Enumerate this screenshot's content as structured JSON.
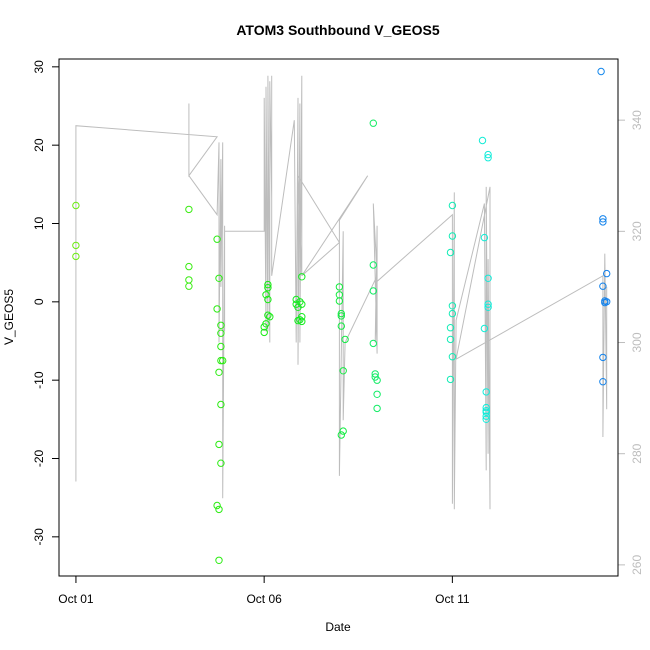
{
  "chart_data": {
    "type": "scatter",
    "title": "ATOM3 Southbound V_GEOS5",
    "xlabel": "Date",
    "ylabel": "V_GEOS5",
    "x_tick_labels": [
      "Oct 01",
      "Oct 06",
      "Oct 11"
    ],
    "x_ticks_day": [
      1,
      6,
      11
    ],
    "xlim_day": [
      0.55,
      15.4
    ],
    "ylim": [
      -35,
      31
    ],
    "y_ticks": [
      -30,
      -20,
      -10,
      0,
      10,
      20,
      30
    ],
    "y2lim": [
      258,
      351
    ],
    "y2_ticks": [
      260,
      280,
      300,
      320,
      340
    ],
    "grid": false,
    "legend": "none",
    "points_color_note": "hue varies from yellow-green to blue with time",
    "series": [
      {
        "type": "scatter",
        "points": [
          [
            1.0,
            12.3
          ],
          [
            1.0,
            7.2
          ],
          [
            1.0,
            5.8
          ],
          [
            4.0,
            11.8
          ],
          [
            4.0,
            4.5
          ],
          [
            4.0,
            2.8
          ],
          [
            4.0,
            2.0
          ],
          [
            4.75,
            8.0
          ],
          [
            4.75,
            -0.9
          ],
          [
            4.8,
            3.0
          ],
          [
            4.8,
            -9.0
          ],
          [
            4.8,
            -18.2
          ],
          [
            4.75,
            -26.0
          ],
          [
            4.8,
            -26.5
          ],
          [
            4.8,
            -33.0
          ],
          [
            4.85,
            -3.0
          ],
          [
            4.85,
            -4.0
          ],
          [
            4.85,
            -5.7
          ],
          [
            4.85,
            -7.5
          ],
          [
            4.9,
            -7.5
          ],
          [
            4.85,
            -13.1
          ],
          [
            4.85,
            -20.6
          ],
          [
            6.0,
            -3.2
          ],
          [
            6.0,
            -3.9
          ],
          [
            6.05,
            -2.8
          ],
          [
            6.05,
            0.9
          ],
          [
            6.1,
            1.8
          ],
          [
            6.1,
            2.2
          ],
          [
            6.1,
            -1.7
          ],
          [
            6.15,
            -1.9
          ],
          [
            6.1,
            0.3
          ],
          [
            6.85,
            -0.3
          ],
          [
            6.85,
            0.3
          ],
          [
            6.9,
            -0.7
          ],
          [
            6.9,
            -2.4
          ],
          [
            6.95,
            -2.3
          ],
          [
            6.95,
            0.0
          ],
          [
            7.0,
            -0.3
          ],
          [
            7.0,
            -2.5
          ],
          [
            7.0,
            -1.9
          ],
          [
            7.0,
            3.2
          ],
          [
            8.0,
            1.9
          ],
          [
            8.0,
            0.9
          ],
          [
            8.0,
            0.1
          ],
          [
            8.05,
            -1.5
          ],
          [
            8.05,
            -1.8
          ],
          [
            8.05,
            -3.1
          ],
          [
            8.1,
            -8.8
          ],
          [
            8.1,
            -16.5
          ],
          [
            8.05,
            -17.0
          ],
          [
            8.15,
            -4.8
          ],
          [
            8.9,
            22.8
          ],
          [
            8.9,
            4.7
          ],
          [
            8.9,
            1.4
          ],
          [
            8.9,
            -5.3
          ],
          [
            8.95,
            -9.2
          ],
          [
            8.95,
            -9.6
          ],
          [
            9.0,
            -10.0
          ],
          [
            9.0,
            -11.8
          ],
          [
            9.0,
            -13.6
          ],
          [
            11.0,
            12.3
          ],
          [
            11.0,
            8.4
          ],
          [
            10.95,
            6.3
          ],
          [
            11.0,
            -0.5
          ],
          [
            11.0,
            -1.5
          ],
          [
            10.95,
            -3.3
          ],
          [
            10.95,
            -4.8
          ],
          [
            11.0,
            -7.0
          ],
          [
            10.95,
            -9.9
          ],
          [
            11.8,
            20.6
          ],
          [
            11.95,
            18.8
          ],
          [
            11.95,
            18.4
          ],
          [
            11.85,
            8.2
          ],
          [
            11.95,
            3.0
          ],
          [
            11.95,
            -0.3
          ],
          [
            11.95,
            -0.7
          ],
          [
            11.85,
            -3.4
          ],
          [
            11.9,
            -11.5
          ],
          [
            11.9,
            -13.5
          ],
          [
            11.9,
            -13.9
          ],
          [
            11.9,
            -14.1
          ],
          [
            11.9,
            -14.6
          ],
          [
            11.9,
            -15.0
          ],
          [
            14.95,
            29.4
          ],
          [
            15.0,
            10.6
          ],
          [
            15.0,
            10.2
          ],
          [
            15.0,
            2.0
          ],
          [
            15.05,
            0.1
          ],
          [
            15.05,
            -0.1
          ],
          [
            15.1,
            0.0
          ],
          [
            15.1,
            3.6
          ],
          [
            15.0,
            -7.1
          ],
          [
            15.0,
            -10.2
          ]
        ]
      },
      {
        "type": "line",
        "axis": "right",
        "color": "#bdbdbd",
        "points": [
          [
            1.0,
            275
          ],
          [
            1.0,
            339
          ],
          [
            4.75,
            337
          ],
          [
            4.0,
            330
          ],
          [
            4.0,
            343
          ],
          [
            4.0,
            330
          ],
          [
            4.75,
            323
          ],
          [
            4.8,
            336
          ],
          [
            4.8,
            300
          ],
          [
            4.85,
            333
          ],
          [
            4.85,
            310
          ],
          [
            4.9,
            336
          ],
          [
            4.9,
            272
          ],
          [
            4.95,
            321
          ],
          [
            4.95,
            302
          ],
          [
            4.95,
            320
          ],
          [
            6.0,
            320
          ],
          [
            6.0,
            344
          ],
          [
            6.05,
            302
          ],
          [
            6.05,
            346
          ],
          [
            6.1,
            302
          ],
          [
            6.1,
            348
          ],
          [
            6.15,
            300
          ],
          [
            6.15,
            347
          ],
          [
            6.2,
            326
          ],
          [
            6.2,
            348
          ],
          [
            6.2,
            312
          ],
          [
            6.8,
            340
          ],
          [
            6.85,
            300
          ],
          [
            6.9,
            344
          ],
          [
            6.9,
            296
          ],
          [
            6.95,
            343
          ],
          [
            6.95,
            300
          ],
          [
            7.0,
            348
          ],
          [
            7.0,
            312
          ],
          [
            6.9,
            330
          ],
          [
            8.0,
            318
          ],
          [
            7.0,
            312
          ],
          [
            8.75,
            330
          ],
          [
            8.0,
            322
          ],
          [
            8.0,
            276
          ],
          [
            8.1,
            320
          ],
          [
            8.1,
            286
          ],
          [
            8.15,
            300
          ],
          [
            9.0,
            312
          ],
          [
            8.9,
            325
          ],
          [
            9.0,
            298
          ],
          [
            9.0,
            321
          ],
          [
            8.95,
            300
          ],
          [
            9.0,
            311
          ],
          [
            11.0,
            323
          ],
          [
            11.0,
            271
          ],
          [
            11.05,
            327
          ],
          [
            11.05,
            270
          ],
          [
            11.1,
            304
          ],
          [
            11.85,
            325
          ],
          [
            11.9,
            277
          ],
          [
            11.9,
            328
          ],
          [
            11.95,
            280
          ],
          [
            11.95,
            315
          ],
          [
            12.0,
            270
          ],
          [
            12.0,
            314
          ],
          [
            12.0,
            328
          ],
          [
            11.1,
            297
          ],
          [
            15.0,
            312
          ],
          [
            15.0,
            283
          ],
          [
            15.05,
            316
          ],
          [
            15.1,
            288
          ],
          [
            15.1,
            310
          ]
        ]
      }
    ]
  }
}
